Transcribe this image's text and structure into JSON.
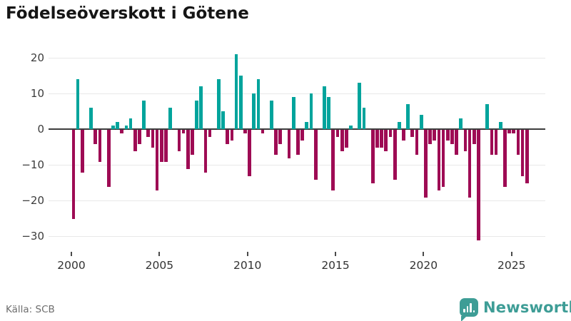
{
  "title": "Födelseöverskott i Götene",
  "source": "Källa: SCB",
  "brand": {
    "name": "Newsworthy",
    "icon": "bar-chart-pin-icon",
    "color": "#3E9D96"
  },
  "colors": {
    "positive_bar": "#00A49C",
    "negative_bar": "#9E0B54",
    "zero_line": "#3D3D3D",
    "gridline": "#E9E9E9",
    "axis_text": "#3C3C3C",
    "background": "#FFFFFF"
  },
  "chart_data": {
    "type": "bar",
    "title": "Födelseöverskott i Götene",
    "unit": "persons per quarter",
    "frequency": "quarterly",
    "start": "2000Q1",
    "end": "2025Q4",
    "xlabel": "",
    "ylabel": "",
    "ylim": [
      -33,
      23
    ],
    "yticks": [
      20,
      10,
      0,
      -10,
      -20,
      -30
    ],
    "xticks": [
      2000,
      2005,
      2010,
      2015,
      2020,
      2025
    ],
    "grid": "horizontal",
    "legend": "none",
    "quarters": [
      "2000Q1",
      "2000Q2",
      "2000Q3",
      "2000Q4",
      "2001Q1",
      "2001Q2",
      "2001Q3",
      "2001Q4",
      "2002Q1",
      "2002Q2",
      "2002Q3",
      "2002Q4",
      "2003Q1",
      "2003Q2",
      "2003Q3",
      "2003Q4",
      "2004Q1",
      "2004Q2",
      "2004Q3",
      "2004Q4",
      "2005Q1",
      "2005Q2",
      "2005Q3",
      "2005Q4",
      "2006Q1",
      "2006Q2",
      "2006Q3",
      "2006Q4",
      "2007Q1",
      "2007Q2",
      "2007Q3",
      "2007Q4",
      "2008Q1",
      "2008Q2",
      "2008Q3",
      "2008Q4",
      "2009Q1",
      "2009Q2",
      "2009Q3",
      "2009Q4",
      "2010Q1",
      "2010Q2",
      "2010Q3",
      "2010Q4",
      "2011Q1",
      "2011Q2",
      "2011Q3",
      "2011Q4",
      "2012Q1",
      "2012Q2",
      "2012Q3",
      "2012Q4",
      "2013Q1",
      "2013Q2",
      "2013Q3",
      "2013Q4",
      "2014Q1",
      "2014Q2",
      "2014Q3",
      "2014Q4",
      "2015Q1",
      "2015Q2",
      "2015Q3",
      "2015Q4",
      "2016Q1",
      "2016Q2",
      "2016Q3",
      "2016Q4",
      "2017Q1",
      "2017Q2",
      "2017Q3",
      "2017Q4",
      "2018Q1",
      "2018Q2",
      "2018Q3",
      "2018Q4",
      "2019Q1",
      "2019Q2",
      "2019Q3",
      "2019Q4",
      "2020Q1",
      "2020Q2",
      "2020Q3",
      "2020Q4",
      "2021Q1",
      "2021Q2",
      "2021Q3",
      "2021Q4",
      "2022Q1",
      "2022Q2",
      "2022Q3",
      "2022Q4",
      "2023Q1",
      "2023Q2",
      "2023Q3",
      "2023Q4",
      "2024Q1",
      "2024Q2",
      "2024Q3",
      "2024Q4",
      "2025Q1",
      "2025Q2",
      "2025Q3",
      "2025Q4"
    ],
    "values": [
      -25,
      14,
      -12,
      0,
      6,
      -4,
      -9,
      0,
      -16,
      1,
      2,
      -1,
      1,
      3,
      -6,
      -4,
      8,
      -2,
      -5,
      -17,
      -9,
      -9,
      6,
      0,
      -6,
      -1,
      -11,
      -7,
      8,
      12,
      -12,
      -2,
      0,
      14,
      5,
      -4,
      -3,
      21,
      15,
      -1,
      -13,
      10,
      14,
      -1,
      0,
      8,
      -7,
      -4,
      0,
      -8,
      9,
      -7,
      -3,
      2,
      10,
      -14,
      0,
      12,
      9,
      -17,
      -2,
      -6,
      -5,
      1,
      0,
      13,
      6,
      0,
      -15,
      -5,
      -5,
      -6,
      -2,
      -14,
      2,
      -3,
      7,
      -2,
      -7,
      4,
      -19,
      -4,
      -3,
      -17,
      -16,
      -3,
      -4,
      -7,
      3,
      -6,
      -19,
      -4,
      -31,
      0,
      7,
      -7,
      -7,
      2,
      -16,
      -1,
      -1,
      -7,
      -13,
      -15
    ]
  }
}
